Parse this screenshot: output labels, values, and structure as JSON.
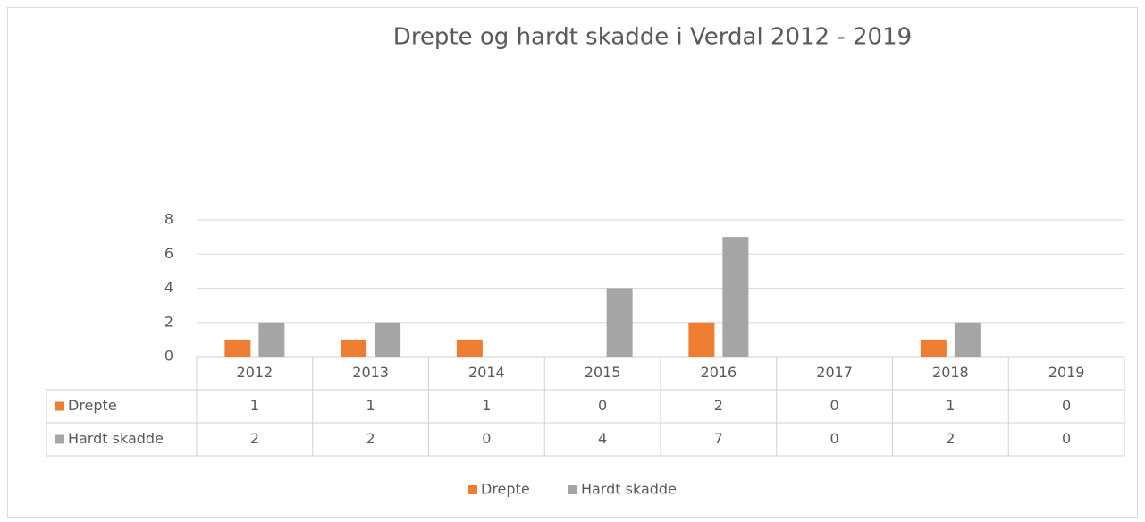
{
  "chart_data": {
    "type": "bar",
    "title": "Drepte og hardt skadde i Verdal 2012 - 2019",
    "categories": [
      "2012",
      "2013",
      "2014",
      "2015",
      "2016",
      "2017",
      "2018",
      "2019"
    ],
    "series": [
      {
        "name": "Drepte",
        "color": "#ed7d31",
        "values": [
          1,
          1,
          1,
          0,
          2,
          0,
          1,
          0
        ]
      },
      {
        "name": "Hardt skadde",
        "color": "#a5a5a5",
        "values": [
          2,
          2,
          0,
          4,
          7,
          0,
          2,
          0
        ]
      }
    ],
    "ylim": [
      0,
      8
    ],
    "yticks": [
      0,
      2,
      4,
      6,
      8
    ],
    "grid": true,
    "legend": "bottom"
  }
}
